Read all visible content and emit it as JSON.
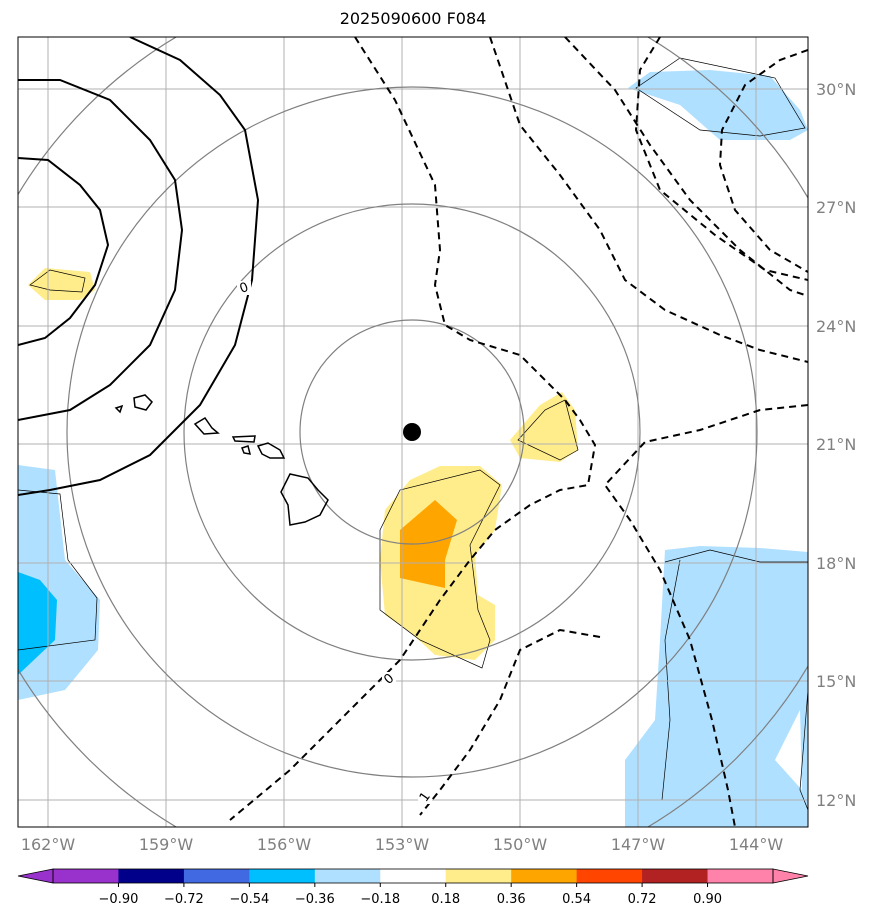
{
  "title": "2025090600 F084",
  "lon_labels": [
    "162°W",
    "159°W",
    "156°W",
    "153°W",
    "150°W",
    "147°W",
    "144°W"
  ],
  "lat_labels": [
    "30°N",
    "27°N",
    "24°N",
    "21°N",
    "18°N",
    "15°N",
    "12°N"
  ],
  "contour_labels": [
    "0",
    "0",
    "1"
  ],
  "colorbar": {
    "ticks": [
      "−0.90",
      "−0.72",
      "−0.54",
      "−0.36",
      "−0.18",
      "0.18",
      "0.36",
      "0.54",
      "0.72",
      "0.90"
    ],
    "colors": [
      "#9932cc",
      "#00008b",
      "#4169e1",
      "#00bfff",
      "#b0e0ff",
      "#ffffff",
      "#ffec8b",
      "#ffa500",
      "#ff4500",
      "#b22222",
      "#ff82ab"
    ]
  },
  "colors": {
    "grid": "#b0b0b0",
    "ring": "#808080",
    "label_gray": "#808080"
  },
  "marker": "storm-center-dot"
}
